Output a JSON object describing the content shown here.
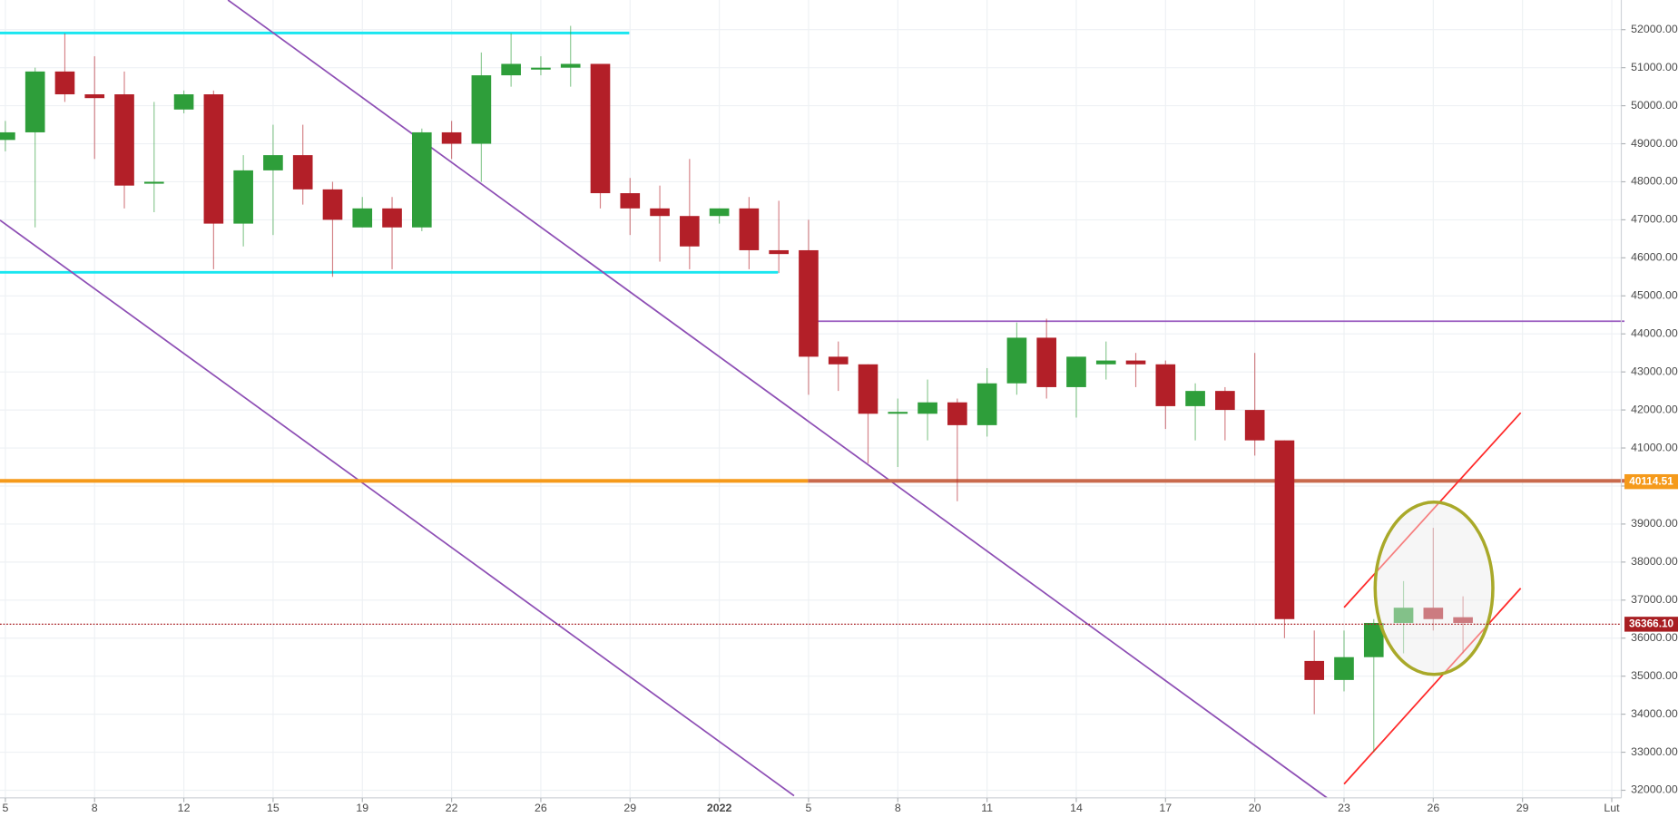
{
  "chart_data": {
    "type": "candlestick",
    "up_color": "#2e9e3a",
    "down_color": "#b31f28",
    "open": [
      49100,
      49300,
      50900,
      50300,
      50300,
      47950,
      49900,
      50300,
      46900,
      48300,
      48700,
      47800,
      46800,
      47300,
      46800,
      49300,
      49000,
      50800,
      50950,
      51000,
      51100,
      47700,
      47300,
      47100,
      47100,
      47300,
      46200,
      46200,
      43400,
      43200,
      41900,
      41900,
      42200,
      41600,
      42700,
      43900,
      42600,
      43200,
      43300,
      43200,
      42100,
      42500,
      42000,
      41200,
      35400,
      34900,
      35500,
      36400,
      36800,
      36550
    ],
    "high": [
      49600,
      51000,
      51900,
      51300,
      50900,
      50100,
      50400,
      50400,
      48700,
      49500,
      49500,
      48000,
      47600,
      47600,
      49400,
      49600,
      51400,
      51900,
      51300,
      52100,
      51100,
      48100,
      47900,
      48600,
      47300,
      47600,
      47500,
      47000,
      43800,
      43200,
      42300,
      42800,
      42300,
      43100,
      44300,
      44400,
      43400,
      43800,
      43500,
      43300,
      42700,
      42600,
      43500,
      41200,
      36200,
      36200,
      36500,
      37500,
      38900,
      37100
    ],
    "low": [
      48800,
      46800,
      50100,
      48600,
      47300,
      47200,
      49800,
      45700,
      46300,
      46600,
      47400,
      45500,
      46800,
      45700,
      46700,
      48600,
      48000,
      50500,
      50800,
      50500,
      47300,
      46600,
      45900,
      45700,
      46900,
      45700,
      45600,
      42400,
      42500,
      40600,
      40500,
      41200,
      39600,
      41300,
      42400,
      42300,
      41800,
      42800,
      42600,
      41500,
      41200,
      41200,
      40800,
      36000,
      34000,
      34600,
      33000,
      35600,
      36200,
      35600
    ],
    "close": [
      49300,
      50900,
      50300,
      50200,
      47900,
      48000,
      50300,
      46900,
      48300,
      48700,
      47800,
      47000,
      47300,
      46800,
      49300,
      49000,
      50800,
      51100,
      51000,
      51100,
      47700,
      47300,
      47100,
      46300,
      47300,
      46200,
      46100,
      43400,
      43200,
      41900,
      41950,
      42200,
      41600,
      42700,
      43900,
      42600,
      43400,
      43300,
      43200,
      42100,
      42500,
      42000,
      41200,
      36500,
      34900,
      35500,
      36400,
      36800,
      36500,
      36400
    ],
    "xlim": [
      -0.18,
      54.32
    ],
    "xticks": [
      {
        "value": 0,
        "label": "5"
      },
      {
        "value": 3,
        "label": "8"
      },
      {
        "value": 6,
        "label": "12"
      },
      {
        "value": 9,
        "label": "15"
      },
      {
        "value": 12,
        "label": "19"
      },
      {
        "value": 15,
        "label": "22"
      },
      {
        "value": 18,
        "label": "26"
      },
      {
        "value": 21,
        "label": "29"
      },
      {
        "value": 24,
        "label": "2022"
      },
      {
        "value": 27,
        "label": "5"
      },
      {
        "value": 30,
        "label": "8"
      },
      {
        "value": 33,
        "label": "11"
      },
      {
        "value": 36,
        "label": "14"
      },
      {
        "value": 39,
        "label": "17"
      },
      {
        "value": 42,
        "label": "20"
      },
      {
        "value": 45,
        "label": "23"
      },
      {
        "value": 48,
        "label": "26"
      },
      {
        "value": 51,
        "label": "29"
      },
      {
        "value": 54,
        "label": "Lut"
      }
    ],
    "ylim": [
      31800,
      52780
    ],
    "yticks": [
      {
        "value": 32000,
        "label": "32000.00"
      },
      {
        "value": 33000,
        "label": "33000.00"
      },
      {
        "value": 34000,
        "label": "34000.00"
      },
      {
        "value": 35000,
        "label": "35000.00"
      },
      {
        "value": 36000,
        "label": "36000.00"
      },
      {
        "value": 37000,
        "label": "37000.00"
      },
      {
        "value": 38000,
        "label": "38000.00"
      },
      {
        "value": 39000,
        "label": "39000.00"
      },
      {
        "value": 40000,
        "label": "40000.00"
      },
      {
        "value": 41000,
        "label": "41000.00"
      },
      {
        "value": 42000,
        "label": "42000.00"
      },
      {
        "value": 43000,
        "label": "43000.00"
      },
      {
        "value": 44000,
        "label": "44000.00"
      },
      {
        "value": 45000,
        "label": "45000.00"
      },
      {
        "value": 46000,
        "label": "46000.00"
      },
      {
        "value": 47000,
        "label": "47000.00"
      },
      {
        "value": 48000,
        "label": "48000.00"
      },
      {
        "value": 49000,
        "label": "49000.00"
      },
      {
        "value": 50000,
        "label": "50000.00"
      },
      {
        "value": 51000,
        "label": "51000.00"
      },
      {
        "value": 52000,
        "label": "52000.00"
      }
    ],
    "grid": true,
    "price_lines": [
      40114.51,
      {
        "value": 36366.1,
        "label": "36366.10"
      }
    ],
    "price_line_colors": [
      "#f59a1b",
      "#a81e22"
    ]
  }
}
